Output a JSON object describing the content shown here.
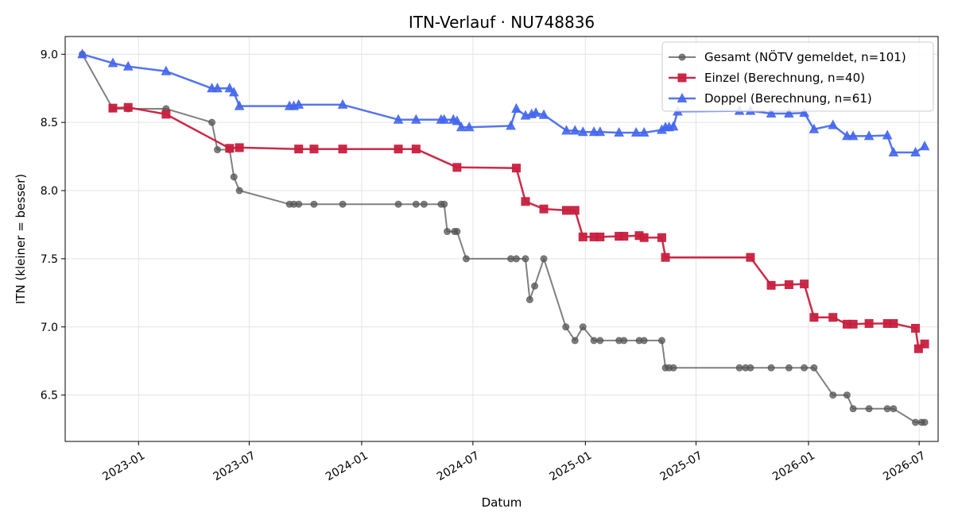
{
  "chart_data": {
    "type": "line",
    "title": "ITN-Verlauf · NU748836",
    "xlabel": "Datum",
    "ylabel": "ITN  (kleiner = besser)",
    "xlim": [
      "2022-09-03",
      "2026-08-01"
    ],
    "ylim": [
      6.16,
      9.13
    ],
    "grid": true,
    "legend_position": "top-right",
    "x_ticks": [
      "2023-01-01",
      "2023-07-01",
      "2024-01-01",
      "2024-07-01",
      "2025-01-01",
      "2025-07-01",
      "2026-01-01",
      "2026-07-01"
    ],
    "x_tick_labels": [
      "2023-01",
      "2023-07",
      "2024-01",
      "2024-07",
      "2025-01",
      "2025-07",
      "2026-01",
      "2026-07"
    ],
    "y_ticks": [
      6.5,
      7.0,
      7.5,
      8.0,
      8.5,
      9.0
    ],
    "y_tick_labels": [
      "6.5",
      "7.0",
      "7.5",
      "8.0",
      "8.5",
      "9.0"
    ],
    "series": [
      {
        "name": "Gesamt (NÖTV gemeldet, n=101)",
        "color": "#555555",
        "marker": "circle",
        "points": [
          [
            "2022-10-01",
            9.0
          ],
          [
            "2022-11-20",
            8.6
          ],
          [
            "2022-12-15",
            8.6
          ],
          [
            "2023-02-15",
            8.6
          ],
          [
            "2023-05-01",
            8.5
          ],
          [
            "2023-05-10",
            8.3
          ],
          [
            "2023-05-30",
            8.3
          ],
          [
            "2023-06-06",
            8.1
          ],
          [
            "2023-06-15",
            8.0
          ],
          [
            "2023-09-05",
            7.9
          ],
          [
            "2023-09-12",
            7.9
          ],
          [
            "2023-09-20",
            7.9
          ],
          [
            "2023-10-15",
            7.9
          ],
          [
            "2023-12-01",
            7.9
          ],
          [
            "2024-03-01",
            7.9
          ],
          [
            "2024-03-30",
            7.9
          ],
          [
            "2024-04-12",
            7.9
          ],
          [
            "2024-05-10",
            7.9
          ],
          [
            "2024-05-15",
            7.9
          ],
          [
            "2024-05-20",
            7.7
          ],
          [
            "2024-06-01",
            7.7
          ],
          [
            "2024-06-05",
            7.7
          ],
          [
            "2024-06-20",
            7.5
          ],
          [
            "2024-09-01",
            7.5
          ],
          [
            "2024-09-10",
            7.5
          ],
          [
            "2024-09-25",
            7.5
          ],
          [
            "2024-10-02",
            7.2
          ],
          [
            "2024-10-10",
            7.3
          ],
          [
            "2024-10-25",
            7.5
          ],
          [
            "2024-11-30",
            7.0
          ],
          [
            "2024-12-15",
            6.9
          ],
          [
            "2024-12-28",
            7.0
          ],
          [
            "2025-01-15",
            6.9
          ],
          [
            "2025-01-25",
            6.9
          ],
          [
            "2025-02-25",
            6.9
          ],
          [
            "2025-03-05",
            6.9
          ],
          [
            "2025-03-30",
            6.9
          ],
          [
            "2025-04-07",
            6.9
          ],
          [
            "2025-05-06",
            6.9
          ],
          [
            "2025-05-12",
            6.7
          ],
          [
            "2025-05-18",
            6.7
          ],
          [
            "2025-05-25",
            6.7
          ],
          [
            "2025-09-10",
            6.7
          ],
          [
            "2025-09-20",
            6.7
          ],
          [
            "2025-09-28",
            6.7
          ],
          [
            "2025-11-01",
            6.7
          ],
          [
            "2025-11-30",
            6.7
          ],
          [
            "2025-12-25",
            6.7
          ],
          [
            "2026-01-10",
            6.7
          ],
          [
            "2026-02-10",
            6.5
          ],
          [
            "2026-03-05",
            6.5
          ],
          [
            "2026-03-15",
            6.4
          ],
          [
            "2026-04-10",
            6.4
          ],
          [
            "2026-05-10",
            6.4
          ],
          [
            "2026-05-20",
            6.4
          ],
          [
            "2026-06-25",
            6.3
          ],
          [
            "2026-07-05",
            6.3
          ],
          [
            "2026-07-10",
            6.3
          ]
        ]
      },
      {
        "name": "Einzel (Berechnung, n=40)",
        "color": "#c8203f",
        "marker": "square",
        "points": [
          [
            "2022-11-20",
            8.605
          ],
          [
            "2022-12-15",
            8.61
          ],
          [
            "2023-02-15",
            8.56
          ],
          [
            "2023-05-30",
            8.31
          ],
          [
            "2023-06-15",
            8.315
          ],
          [
            "2023-09-20",
            8.305
          ],
          [
            "2023-10-15",
            8.305
          ],
          [
            "2023-12-01",
            8.305
          ],
          [
            "2024-03-01",
            8.305
          ],
          [
            "2024-03-30",
            8.305
          ],
          [
            "2024-06-05",
            8.17
          ],
          [
            "2024-09-10",
            8.165
          ],
          [
            "2024-09-25",
            7.92
          ],
          [
            "2024-10-25",
            7.865
          ],
          [
            "2024-12-01",
            7.855
          ],
          [
            "2024-12-15",
            7.855
          ],
          [
            "2024-12-28",
            7.66
          ],
          [
            "2025-01-15",
            7.66
          ],
          [
            "2025-01-25",
            7.66
          ],
          [
            "2025-02-25",
            7.665
          ],
          [
            "2025-03-05",
            7.665
          ],
          [
            "2025-03-30",
            7.67
          ],
          [
            "2025-04-07",
            7.655
          ],
          [
            "2025-05-06",
            7.655
          ],
          [
            "2025-05-12",
            7.51
          ],
          [
            "2025-09-28",
            7.51
          ],
          [
            "2025-11-01",
            7.305
          ],
          [
            "2025-11-30",
            7.31
          ],
          [
            "2025-12-25",
            7.315
          ],
          [
            "2026-01-10",
            7.07
          ],
          [
            "2026-02-10",
            7.07
          ],
          [
            "2026-03-05",
            7.02
          ],
          [
            "2026-03-15",
            7.02
          ],
          [
            "2026-04-10",
            7.025
          ],
          [
            "2026-05-10",
            7.025
          ],
          [
            "2026-05-20",
            7.025
          ],
          [
            "2026-06-25",
            6.99
          ],
          [
            "2026-06-30",
            6.84
          ],
          [
            "2026-07-10",
            6.875
          ]
        ]
      },
      {
        "name": "Doppel (Berechnung, n=61)",
        "color": "#4466ee",
        "marker": "triangle",
        "points": [
          [
            "2022-10-01",
            9.0
          ],
          [
            "2022-11-20",
            8.935
          ],
          [
            "2022-12-15",
            8.91
          ],
          [
            "2023-02-15",
            8.875
          ],
          [
            "2023-05-01",
            8.75
          ],
          [
            "2023-05-10",
            8.75
          ],
          [
            "2023-05-30",
            8.75
          ],
          [
            "2023-06-06",
            8.72
          ],
          [
            "2023-06-15",
            8.62
          ],
          [
            "2023-09-05",
            8.62
          ],
          [
            "2023-09-12",
            8.62
          ],
          [
            "2023-09-20",
            8.63
          ],
          [
            "2023-12-01",
            8.63
          ],
          [
            "2024-03-01",
            8.52
          ],
          [
            "2024-03-30",
            8.52
          ],
          [
            "2024-05-10",
            8.52
          ],
          [
            "2024-05-15",
            8.52
          ],
          [
            "2024-05-30",
            8.52
          ],
          [
            "2024-06-05",
            8.51
          ],
          [
            "2024-06-12",
            8.465
          ],
          [
            "2024-06-25",
            8.465
          ],
          [
            "2024-09-01",
            8.475
          ],
          [
            "2024-09-10",
            8.6
          ],
          [
            "2024-09-25",
            8.55
          ],
          [
            "2024-10-05",
            8.56
          ],
          [
            "2024-10-12",
            8.57
          ],
          [
            "2024-10-25",
            8.555
          ],
          [
            "2024-12-01",
            8.44
          ],
          [
            "2024-12-15",
            8.44
          ],
          [
            "2024-12-28",
            8.43
          ],
          [
            "2025-01-15",
            8.43
          ],
          [
            "2025-01-25",
            8.43
          ],
          [
            "2025-02-25",
            8.425
          ],
          [
            "2025-03-25",
            8.425
          ],
          [
            "2025-04-07",
            8.425
          ],
          [
            "2025-05-06",
            8.445
          ],
          [
            "2025-05-12",
            8.465
          ],
          [
            "2025-05-18",
            8.465
          ],
          [
            "2025-05-25",
            8.47
          ],
          [
            "2025-06-01",
            8.58
          ],
          [
            "2025-09-10",
            8.585
          ],
          [
            "2025-09-28",
            8.585
          ],
          [
            "2025-11-01",
            8.565
          ],
          [
            "2025-11-30",
            8.565
          ],
          [
            "2025-12-25",
            8.57
          ],
          [
            "2026-01-10",
            8.45
          ],
          [
            "2026-02-10",
            8.48
          ],
          [
            "2026-03-05",
            8.4
          ],
          [
            "2026-03-15",
            8.4
          ],
          [
            "2026-04-10",
            8.4
          ],
          [
            "2026-05-10",
            8.405
          ],
          [
            "2026-05-20",
            8.28
          ],
          [
            "2026-06-25",
            8.28
          ],
          [
            "2026-07-10",
            8.325
          ]
        ]
      }
    ]
  }
}
